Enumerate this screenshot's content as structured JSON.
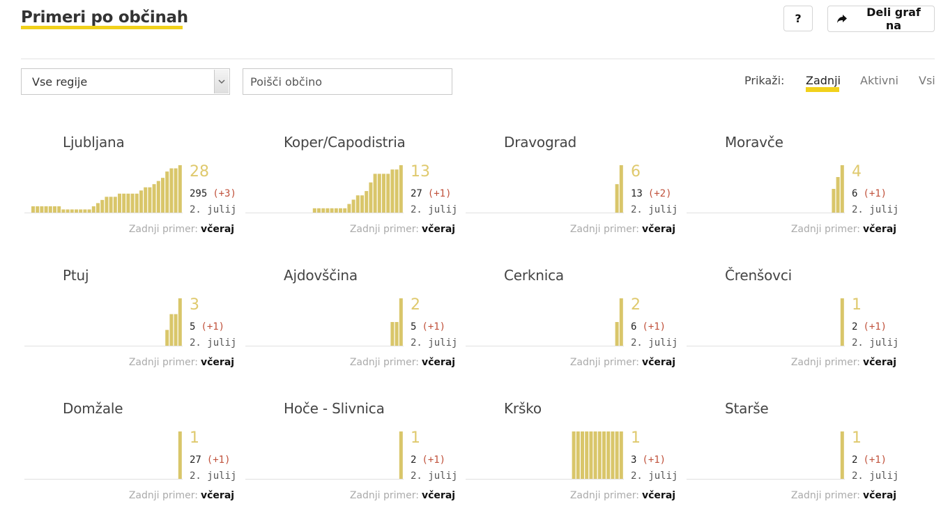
{
  "header": {
    "title": "Primeri po občinah",
    "help_label": "?",
    "share_label": "Deli graf na"
  },
  "filters": {
    "region_selected": "Vse regije",
    "search_placeholder": "Poišči občino",
    "show_label": "Prikaži:",
    "show_options": [
      "Zadnji",
      "Aktivni",
      "Vsi"
    ],
    "active_option": "Zadnji"
  },
  "colors": {
    "accent": "#f1d11b",
    "bar": "#d9c66a",
    "delta": "#c0513b"
  },
  "municipalities": [
    {
      "name": "Ljubljana",
      "count": "28",
      "total": "295",
      "delta": "(+3)",
      "date": "2. julij",
      "last_label": "Zadnji primer:",
      "last_value": "včeraj",
      "bars": [
        2,
        2,
        2,
        2,
        2,
        2,
        2,
        1,
        1,
        1,
        1,
        1,
        1,
        1,
        2,
        3,
        4,
        5,
        5,
        5,
        6,
        6,
        6,
        6,
        6,
        7,
        8,
        8,
        9,
        10,
        11,
        13,
        14,
        14,
        15
      ]
    },
    {
      "name": "Koper/Capodistria",
      "count": "13",
      "total": "27",
      "delta": "(+1)",
      "date": "2. julij",
      "last_label": "Zadnji primer:",
      "last_value": "včeraj",
      "bars": [
        0,
        0,
        0,
        0,
        0,
        0,
        0,
        0,
        0,
        0,
        0,
        0,
        0,
        0,
        1,
        1,
        1,
        1,
        1,
        1,
        1,
        1,
        2,
        3,
        4,
        4,
        5,
        7,
        9,
        9,
        9,
        9,
        10,
        10,
        11
      ]
    },
    {
      "name": "Dravograd",
      "count": "6",
      "total": "13",
      "delta": "(+2)",
      "date": "2. julij",
      "last_label": "Zadnji primer:",
      "last_value": "včeraj",
      "bars": [
        0,
        0,
        0,
        0,
        0,
        0,
        0,
        0,
        0,
        0,
        0,
        0,
        0,
        0,
        0,
        0,
        0,
        0,
        0,
        0,
        0,
        0,
        0,
        0,
        0,
        0,
        0,
        0,
        0,
        0,
        0,
        0,
        0,
        3,
        5
      ]
    },
    {
      "name": "Moravče",
      "count": "4",
      "total": "6",
      "delta": "(+1)",
      "date": "2. julij",
      "last_label": "Zadnji primer:",
      "last_value": "včeraj",
      "bars": [
        0,
        0,
        0,
        0,
        0,
        0,
        0,
        0,
        0,
        0,
        0,
        0,
        0,
        0,
        0,
        0,
        0,
        0,
        0,
        0,
        0,
        0,
        0,
        0,
        0,
        0,
        0,
        0,
        0,
        0,
        0,
        0,
        2,
        3,
        4
      ]
    },
    {
      "name": "Ptuj",
      "count": "3",
      "total": "5",
      "delta": "(+1)",
      "date": "2. julij",
      "last_label": "Zadnji primer:",
      "last_value": "včeraj",
      "bars": [
        0,
        0,
        0,
        0,
        0,
        0,
        0,
        0,
        0,
        0,
        0,
        0,
        0,
        0,
        0,
        0,
        0,
        0,
        0,
        0,
        0,
        0,
        0,
        0,
        0,
        0,
        0,
        0,
        0,
        0,
        0,
        1,
        2,
        2,
        3
      ]
    },
    {
      "name": "Ajdovščina",
      "count": "2",
      "total": "5",
      "delta": "(+1)",
      "date": "2. julij",
      "last_label": "Zadnji primer:",
      "last_value": "včeraj",
      "bars": [
        0,
        0,
        0,
        0,
        0,
        0,
        0,
        0,
        0,
        0,
        0,
        0,
        0,
        0,
        0,
        0,
        0,
        0,
        0,
        0,
        0,
        0,
        0,
        0,
        0,
        0,
        0,
        0,
        0,
        0,
        0,
        0,
        1,
        1,
        2
      ]
    },
    {
      "name": "Cerknica",
      "count": "2",
      "total": "6",
      "delta": "(+1)",
      "date": "2. julij",
      "last_label": "Zadnji primer:",
      "last_value": "včeraj",
      "bars": [
        0,
        0,
        0,
        0,
        0,
        0,
        0,
        0,
        0,
        0,
        0,
        0,
        0,
        0,
        0,
        0,
        0,
        0,
        0,
        0,
        0,
        0,
        0,
        0,
        0,
        0,
        0,
        0,
        0,
        0,
        0,
        0,
        0,
        1,
        2
      ]
    },
    {
      "name": "Črenšovci",
      "count": "1",
      "total": "2",
      "delta": "(+1)",
      "date": "2. julij",
      "last_label": "Zadnji primer:",
      "last_value": "včeraj",
      "bars": [
        0,
        0,
        0,
        0,
        0,
        0,
        0,
        0,
        0,
        0,
        0,
        0,
        0,
        0,
        0,
        0,
        0,
        0,
        0,
        0,
        0,
        0,
        0,
        0,
        0,
        0,
        0,
        0,
        0,
        0,
        0,
        0,
        0,
        0,
        1
      ]
    },
    {
      "name": "Domžale",
      "count": "1",
      "total": "27",
      "delta": "(+1)",
      "date": "2. julij",
      "last_label": "Zadnji primer:",
      "last_value": "včeraj",
      "bars": [
        0,
        0,
        0,
        0,
        0,
        0,
        0,
        0,
        0,
        0,
        0,
        0,
        0,
        0,
        0,
        0,
        0,
        0,
        0,
        0,
        0,
        0,
        0,
        0,
        0,
        0,
        0,
        0,
        0,
        0,
        0,
        0,
        0,
        0,
        1
      ]
    },
    {
      "name": "Hoče - Slivnica",
      "count": "1",
      "total": "2",
      "delta": "(+1)",
      "date": "2. julij",
      "last_label": "Zadnji primer:",
      "last_value": "včeraj",
      "bars": [
        0,
        0,
        0,
        0,
        0,
        0,
        0,
        0,
        0,
        0,
        0,
        0,
        0,
        0,
        0,
        0,
        0,
        0,
        0,
        0,
        0,
        0,
        0,
        0,
        0,
        0,
        0,
        0,
        0,
        0,
        0,
        0,
        0,
        0,
        1
      ]
    },
    {
      "name": "Krško",
      "count": "1",
      "total": "3",
      "delta": "(+1)",
      "date": "2. julij",
      "last_label": "Zadnji primer:",
      "last_value": "včeraj",
      "bars": [
        0,
        0,
        0,
        0,
        0,
        0,
        0,
        0,
        0,
        0,
        0,
        0,
        0,
        0,
        0,
        0,
        0,
        0,
        0,
        0,
        0,
        0,
        0,
        2,
        2,
        2,
        2,
        2,
        2,
        2,
        2,
        2,
        2,
        2,
        2
      ]
    },
    {
      "name": "Starše",
      "count": "1",
      "total": "2",
      "delta": "(+1)",
      "date": "2. julij",
      "last_label": "Zadnji primer:",
      "last_value": "včeraj",
      "bars": [
        0,
        0,
        0,
        0,
        0,
        0,
        0,
        0,
        0,
        0,
        0,
        0,
        0,
        0,
        0,
        0,
        0,
        0,
        0,
        0,
        0,
        0,
        0,
        0,
        0,
        0,
        0,
        0,
        0,
        0,
        0,
        0,
        0,
        0,
        1
      ]
    }
  ]
}
